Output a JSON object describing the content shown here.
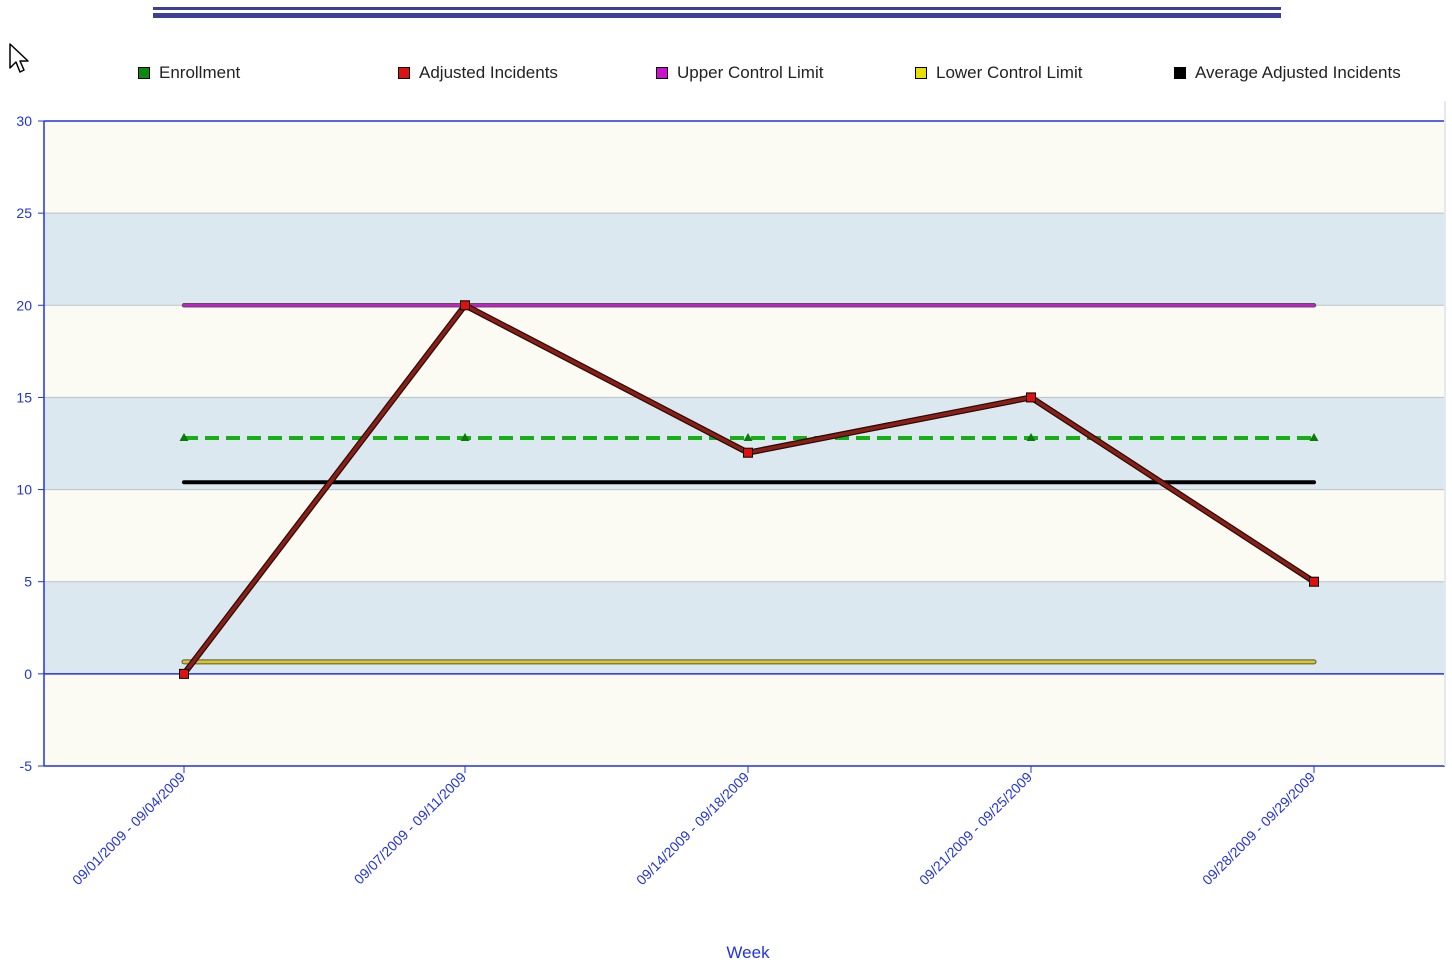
{
  "chart_data": {
    "type": "line",
    "xlabel": "Week",
    "ylabel": "",
    "ylim": [
      -5,
      30
    ],
    "yticks": [
      -5,
      0,
      5,
      10,
      15,
      20,
      25,
      30
    ],
    "grid": true,
    "legend_position": "top",
    "categories": [
      "09/01/2009 - 09/04/2009",
      "09/07/2009 - 09/11/2009",
      "09/14/2009 - 09/18/2009",
      "09/21/2009 - 09/25/2009",
      "09/28/2009 - 09/29/2009"
    ],
    "series": [
      {
        "name": "Enrollment",
        "color": "#16b016",
        "marker_color": "#0a7a0a",
        "values": [
          12.8,
          12.8,
          12.8,
          12.8,
          12.8
        ]
      },
      {
        "name": "Adjusted Incidents",
        "color": "#8b1f16",
        "marker_color": "#e01010",
        "values": [
          0,
          20,
          12,
          15,
          5
        ]
      },
      {
        "name": "Upper Control Limit",
        "color": "#cc1acc",
        "marker_color": "#cc1acc",
        "values": [
          20,
          20,
          20,
          20,
          20
        ]
      },
      {
        "name": "Lower Control Limit",
        "color": "#d9c81c",
        "marker_color": "#d9c81c",
        "values": [
          0.65,
          0.65,
          0.65,
          0.65,
          0.65
        ]
      },
      {
        "name": "Average Adjusted Incidents",
        "color": "#000000",
        "marker_color": "#000000",
        "values": [
          10.4,
          10.4,
          10.4,
          10.4,
          10.4
        ]
      }
    ]
  },
  "legend": [
    {
      "label": "Enrollment",
      "color": "#0b8a0b"
    },
    {
      "label": "Adjusted Incidents",
      "color": "#dd1111"
    },
    {
      "label": "Upper Control Limit",
      "color": "#cc11cc"
    },
    {
      "label": "Lower Control Limit",
      "color": "#e8e000"
    },
    {
      "label": "Average Adjusted Incidents",
      "color": "#000000"
    }
  ],
  "colors": {
    "axis": "#2233dd",
    "band_light": "#fbfbf3",
    "band_blue": "#dce8f0",
    "header_bar": "#3a3f97"
  },
  "icons": {
    "cursor": "mouse-pointer-icon"
  }
}
